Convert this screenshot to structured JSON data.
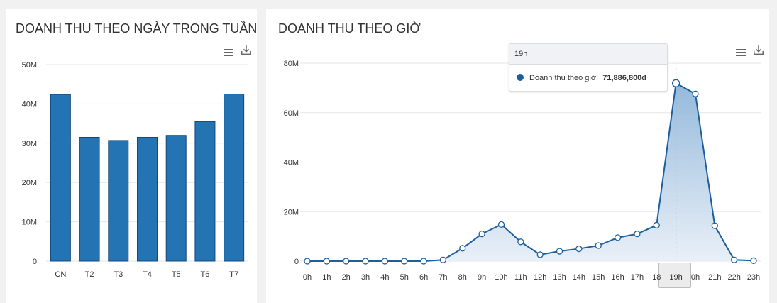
{
  "charts": [
    {
      "title": "DOANH THU THEO NGÀY TRONG TUẦN",
      "chart_data": {
        "type": "bar",
        "categories": [
          "CN",
          "T2",
          "T3",
          "T4",
          "T5",
          "T6",
          "T7"
        ],
        "values": [
          42.4,
          31.5,
          30.7,
          31.5,
          32.0,
          35.5,
          42.5
        ],
        "yticks": [
          "0",
          "10M",
          "20M",
          "30M",
          "40M",
          "50M"
        ],
        "ylim": [
          0,
          50
        ],
        "unit_scale": "M",
        "color": "#2474b4",
        "grid": true
      }
    },
    {
      "title": "DOANH THU THEO GIỜ",
      "chart_data": {
        "type": "area",
        "categories": [
          "0h",
          "1h",
          "2h",
          "3h",
          "4h",
          "5h",
          "6h",
          "7h",
          "8h",
          "9h",
          "10h",
          "11h",
          "12h",
          "13h",
          "14h",
          "15h",
          "16h",
          "17h",
          "18h",
          "19h",
          "20h",
          "21h",
          "22h",
          "23h"
        ],
        "x_labels_visible": [
          "0h",
          "1h",
          "2h",
          "3h",
          "4h",
          "5h",
          "6h",
          "7h",
          "8h",
          "9h",
          "10h",
          "11h",
          "12h",
          "13h",
          "14h",
          "15h",
          "16h",
          "17h",
          "18",
          "19h",
          "0h",
          "21h",
          "22h",
          "23h"
        ],
        "values": [
          0,
          0,
          0,
          0,
          0,
          0,
          0,
          0.5,
          5.2,
          11.0,
          14.8,
          7.8,
          2.6,
          4.0,
          5.0,
          6.3,
          9.5,
          11.0,
          14.5,
          71.9,
          67.6,
          14.3,
          0.5,
          0.2
        ],
        "yticks": [
          "0",
          "20M",
          "40M",
          "60M",
          "80M"
        ],
        "ylim": [
          0,
          80
        ],
        "unit_scale": "M",
        "color": "#1c5f9c",
        "fill_top": "#8fb5d9",
        "fill_bottom": "#e6eef7",
        "grid": true,
        "highlight_index": 19
      },
      "tooltip": {
        "header": "19h",
        "series_label": "Doanh thu theo giờ:",
        "value": "71,886,800đ"
      }
    }
  ],
  "icons": {
    "menu": "hamburger-menu-icon",
    "download": "download-icon"
  }
}
